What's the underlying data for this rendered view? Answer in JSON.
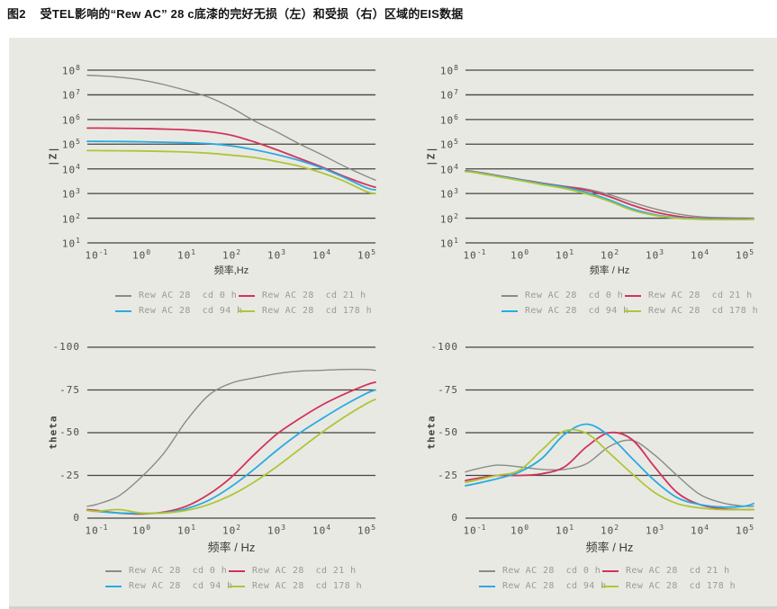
{
  "title": {
    "tag": "图2",
    "text": "受TEL影响的“Rew AC” 28 c底漆的完好无损（左）和受损（右）区域的EIS数据"
  },
  "colors": {
    "panel_background": "#e9e9e4",
    "gridline": "#46463f",
    "tick_text": "#4e4e47",
    "legend_text": "#9b9b92",
    "series": {
      "gray": "#8a8a88",
      "red": "#d2335a",
      "blue": "#29abe2",
      "green": "#aec637"
    }
  },
  "legend": {
    "entries": [
      {
        "label": "Rew AC 28  cd 0 h",
        "color_key": "gray"
      },
      {
        "label": "Rew AC 28  cd 21 h",
        "color_key": "red"
      },
      {
        "label": "Rew AC 28  cd 94 h",
        "color_key": "blue"
      },
      {
        "label": "Rew AC 28  cd 178 h",
        "color_key": "green"
      }
    ]
  },
  "chart_data": [
    {
      "id": "z_intact",
      "type": "line",
      "position": "top-left",
      "xlabel": "频率,Hz",
      "ylabel": "|Z|",
      "xscale": "log",
      "yscale": "log",
      "xlim_log10": [
        -1.2,
        5.2
      ],
      "ylim": [
        10,
        100000000
      ],
      "x_ticks_log10": [
        -1,
        0,
        1,
        2,
        3,
        4,
        5
      ],
      "x_tick_labels": [
        "10^-1",
        "10^0",
        "10^1",
        "10^2",
        "10^3",
        "10^4",
        "10^5"
      ],
      "y_ticks": [
        "10^8",
        "10^7",
        "10^6",
        "10^5",
        "10^4",
        "10^3",
        "10^2",
        "10^1"
      ],
      "x_log10": [
        -1.2,
        -1,
        -0.5,
        0,
        0.5,
        1,
        1.5,
        2,
        2.5,
        3,
        3.5,
        4,
        4.5,
        5,
        5.2
      ],
      "series": [
        {
          "name": "Rew AC 28 cd 0 h",
          "color_key": "gray",
          "values": [
            62000000.0,
            60000000.0,
            52000000.0,
            40000000.0,
            26000000.0,
            15000000.0,
            8000000.0,
            3000000.0,
            900000.0,
            320000.0,
            105000.0,
            38000.0,
            13000.0,
            5000.0,
            3500.0
          ]
        },
        {
          "name": "Rew AC 28 cd 21 h",
          "color_key": "red",
          "values": [
            450000.0,
            450000.0,
            440000.0,
            430000.0,
            410000.0,
            380000.0,
            320000.0,
            230000.0,
            125000.0,
            60000.0,
            27000.0,
            12000.0,
            5000.0,
            2300.0,
            1800.0
          ]
        },
        {
          "name": "Rew AC 28 cd 94 h",
          "color_key": "blue",
          "values": [
            130000.0,
            130000.0,
            128000.0,
            125000.0,
            120000.0,
            115000.0,
            105000.0,
            85000.0,
            60000.0,
            38000.0,
            22000.0,
            11000.0,
            4500.0,
            1700.0,
            1400.0
          ]
        },
        {
          "name": "Rew AC 28 cd 178 h",
          "color_key": "green",
          "values": [
            55000.0,
            55000.0,
            54000.0,
            53000.0,
            51000.0,
            48000.0,
            43000.0,
            36000.0,
            29000.0,
            20000.0,
            13000.0,
            7000.0,
            3200.0,
            1200.0,
            1000.0
          ]
        }
      ]
    },
    {
      "id": "z_damaged",
      "type": "line",
      "position": "top-right",
      "xlabel": "频率 / Hz",
      "ylabel": "|Z|",
      "xscale": "log",
      "yscale": "log",
      "xlim_log10": [
        -1.2,
        5.2
      ],
      "ylim": [
        10,
        100000000
      ],
      "x_ticks_log10": [
        -1,
        0,
        1,
        2,
        3,
        4,
        5
      ],
      "x_tick_labels": [
        "10^-1",
        "10^0",
        "10^1",
        "10^2",
        "10^3",
        "10^4",
        "10^5"
      ],
      "y_ticks": [
        "10^8",
        "10^7",
        "10^6",
        "10^5",
        "10^4",
        "10^3",
        "10^2",
        "10^1"
      ],
      "x_log10": [
        -1.2,
        -1,
        -0.5,
        0,
        0.5,
        1,
        1.5,
        2,
        2.5,
        3,
        3.5,
        4,
        4.5,
        5,
        5.2
      ],
      "series": [
        {
          "name": "Rew AC 28 cd 0 h",
          "color_key": "gray",
          "values": [
            8500.0,
            7800.0,
            5500.0,
            3800.0,
            2700.0,
            2000.0,
            1500.0,
            900.0,
            450.0,
            240.0,
            150.0,
            115.0,
            105.0,
            100.0,
            100.0
          ]
        },
        {
          "name": "Rew AC 28 cd 21 h",
          "color_key": "red",
          "values": [
            8300.0,
            7600.0,
            5300.0,
            3700.0,
            2600.0,
            1900.0,
            1350.0,
            750.0,
            340.0,
            180.0,
            120.0,
            100.0,
            95.0,
            95.0,
            95.0
          ]
        },
        {
          "name": "Rew AC 28 cd 94 h",
          "color_key": "blue",
          "values": [
            8100.0,
            7400.0,
            5200.0,
            3600.0,
            2500.0,
            1800.0,
            1100.0,
            550.0,
            240.0,
            140.0,
            105.0,
            95.0,
            92.0,
            92.0,
            95.0
          ]
        },
        {
          "name": "Rew AC 28 cd 178 h",
          "color_key": "green",
          "values": [
            7800.0,
            7100.0,
            4900.0,
            3400.0,
            2300.0,
            1600.0,
            950.0,
            480.0,
            210.0,
            130.0,
            100.0,
            90.0,
            88.0,
            88.0,
            90.0
          ]
        }
      ]
    },
    {
      "id": "theta_intact",
      "type": "line",
      "position": "bottom-left",
      "xlabel": "频率 / Hz",
      "ylabel": "theta",
      "xscale": "log",
      "yscale": "linear",
      "xlim_log10": [
        -1.2,
        5.2
      ],
      "ylim": [
        0,
        -100
      ],
      "x_ticks_log10": [
        -1,
        0,
        1,
        2,
        3,
        4,
        5
      ],
      "x_tick_labels": [
        "10^-1",
        "10^0",
        "10^1",
        "10^2",
        "10^3",
        "10^4",
        "10^5"
      ],
      "y_ticks": [
        "-100",
        "-75",
        "-50",
        "-25",
        "0"
      ],
      "x_log10": [
        -1.2,
        -1,
        -0.5,
        0,
        0.5,
        1,
        1.5,
        2,
        2.5,
        3,
        3.5,
        4,
        4.5,
        5,
        5.2
      ],
      "series": [
        {
          "name": "Rew AC 28 cd 0 h",
          "color_key": "gray",
          "values": [
            -7,
            -8,
            -13,
            -24,
            -38,
            -57,
            -72,
            -79,
            -82,
            -84.5,
            -86,
            -86.5,
            -87,
            -87,
            -86.5
          ]
        },
        {
          "name": "Rew AC 28 cd 21 h",
          "color_key": "red",
          "values": [
            -5,
            -4.5,
            -3,
            -2.5,
            -3.5,
            -7,
            -14,
            -24,
            -37,
            -49,
            -58,
            -66,
            -72.5,
            -78,
            -79.5
          ]
        },
        {
          "name": "Rew AC 28 cd 94 h",
          "color_key": "blue",
          "values": [
            -4.5,
            -4,
            -3,
            -2.8,
            -3.2,
            -5.5,
            -10.5,
            -18.5,
            -28.5,
            -39.5,
            -49.5,
            -58,
            -66,
            -73,
            -75
          ]
        },
        {
          "name": "Rew AC 28 cd 178 h",
          "color_key": "green",
          "values": [
            -4.5,
            -4,
            -5,
            -3,
            -3,
            -4.5,
            -8,
            -13.5,
            -21,
            -30,
            -40,
            -50,
            -59,
            -67,
            -69.5
          ]
        }
      ]
    },
    {
      "id": "theta_damaged",
      "type": "line",
      "position": "bottom-right",
      "xlabel": "频率 / Hz",
      "ylabel": "theta",
      "xscale": "log",
      "yscale": "linear",
      "xlim_log10": [
        -1.2,
        5.2
      ],
      "ylim": [
        0,
        -100
      ],
      "x_ticks_log10": [
        -1,
        0,
        1,
        2,
        3,
        4,
        5
      ],
      "x_tick_labels": [
        "10^-1",
        "10^0",
        "10^1",
        "10^2",
        "10^3",
        "10^4",
        "10^5"
      ],
      "y_ticks": [
        "-100",
        "-75",
        "-50",
        "-25",
        "0"
      ],
      "x_log10": [
        -1.2,
        -1,
        -0.5,
        0,
        0.5,
        1,
        1.5,
        2,
        2.5,
        3,
        3.5,
        4,
        4.5,
        5,
        5.2
      ],
      "series": [
        {
          "name": "Rew AC 28 cd 0 h",
          "color_key": "gray",
          "values": [
            -27,
            -28.5,
            -31,
            -30,
            -28.5,
            -28.5,
            -32,
            -42,
            -45.5,
            -37,
            -25,
            -14,
            -9,
            -7,
            -7
          ]
        },
        {
          "name": "Rew AC 28 cd 21 h",
          "color_key": "red",
          "values": [
            -22,
            -23,
            -25,
            -25,
            -26,
            -30,
            -42,
            -50,
            -46,
            -30,
            -15,
            -8,
            -5.5,
            -5,
            -5
          ]
        },
        {
          "name": "Rew AC 28 cd 94 h",
          "color_key": "blue",
          "values": [
            -19,
            -20,
            -23,
            -27,
            -35,
            -49,
            -55,
            -48,
            -35,
            -22,
            -12,
            -8,
            -6.5,
            -7,
            -8.5
          ]
        },
        {
          "name": "Rew AC 28 cd 178 h",
          "color_key": "green",
          "values": [
            -21,
            -22,
            -25,
            -28,
            -40,
            -51,
            -49.5,
            -38,
            -26,
            -15,
            -8.5,
            -6,
            -5,
            -5,
            -5
          ]
        }
      ]
    }
  ]
}
